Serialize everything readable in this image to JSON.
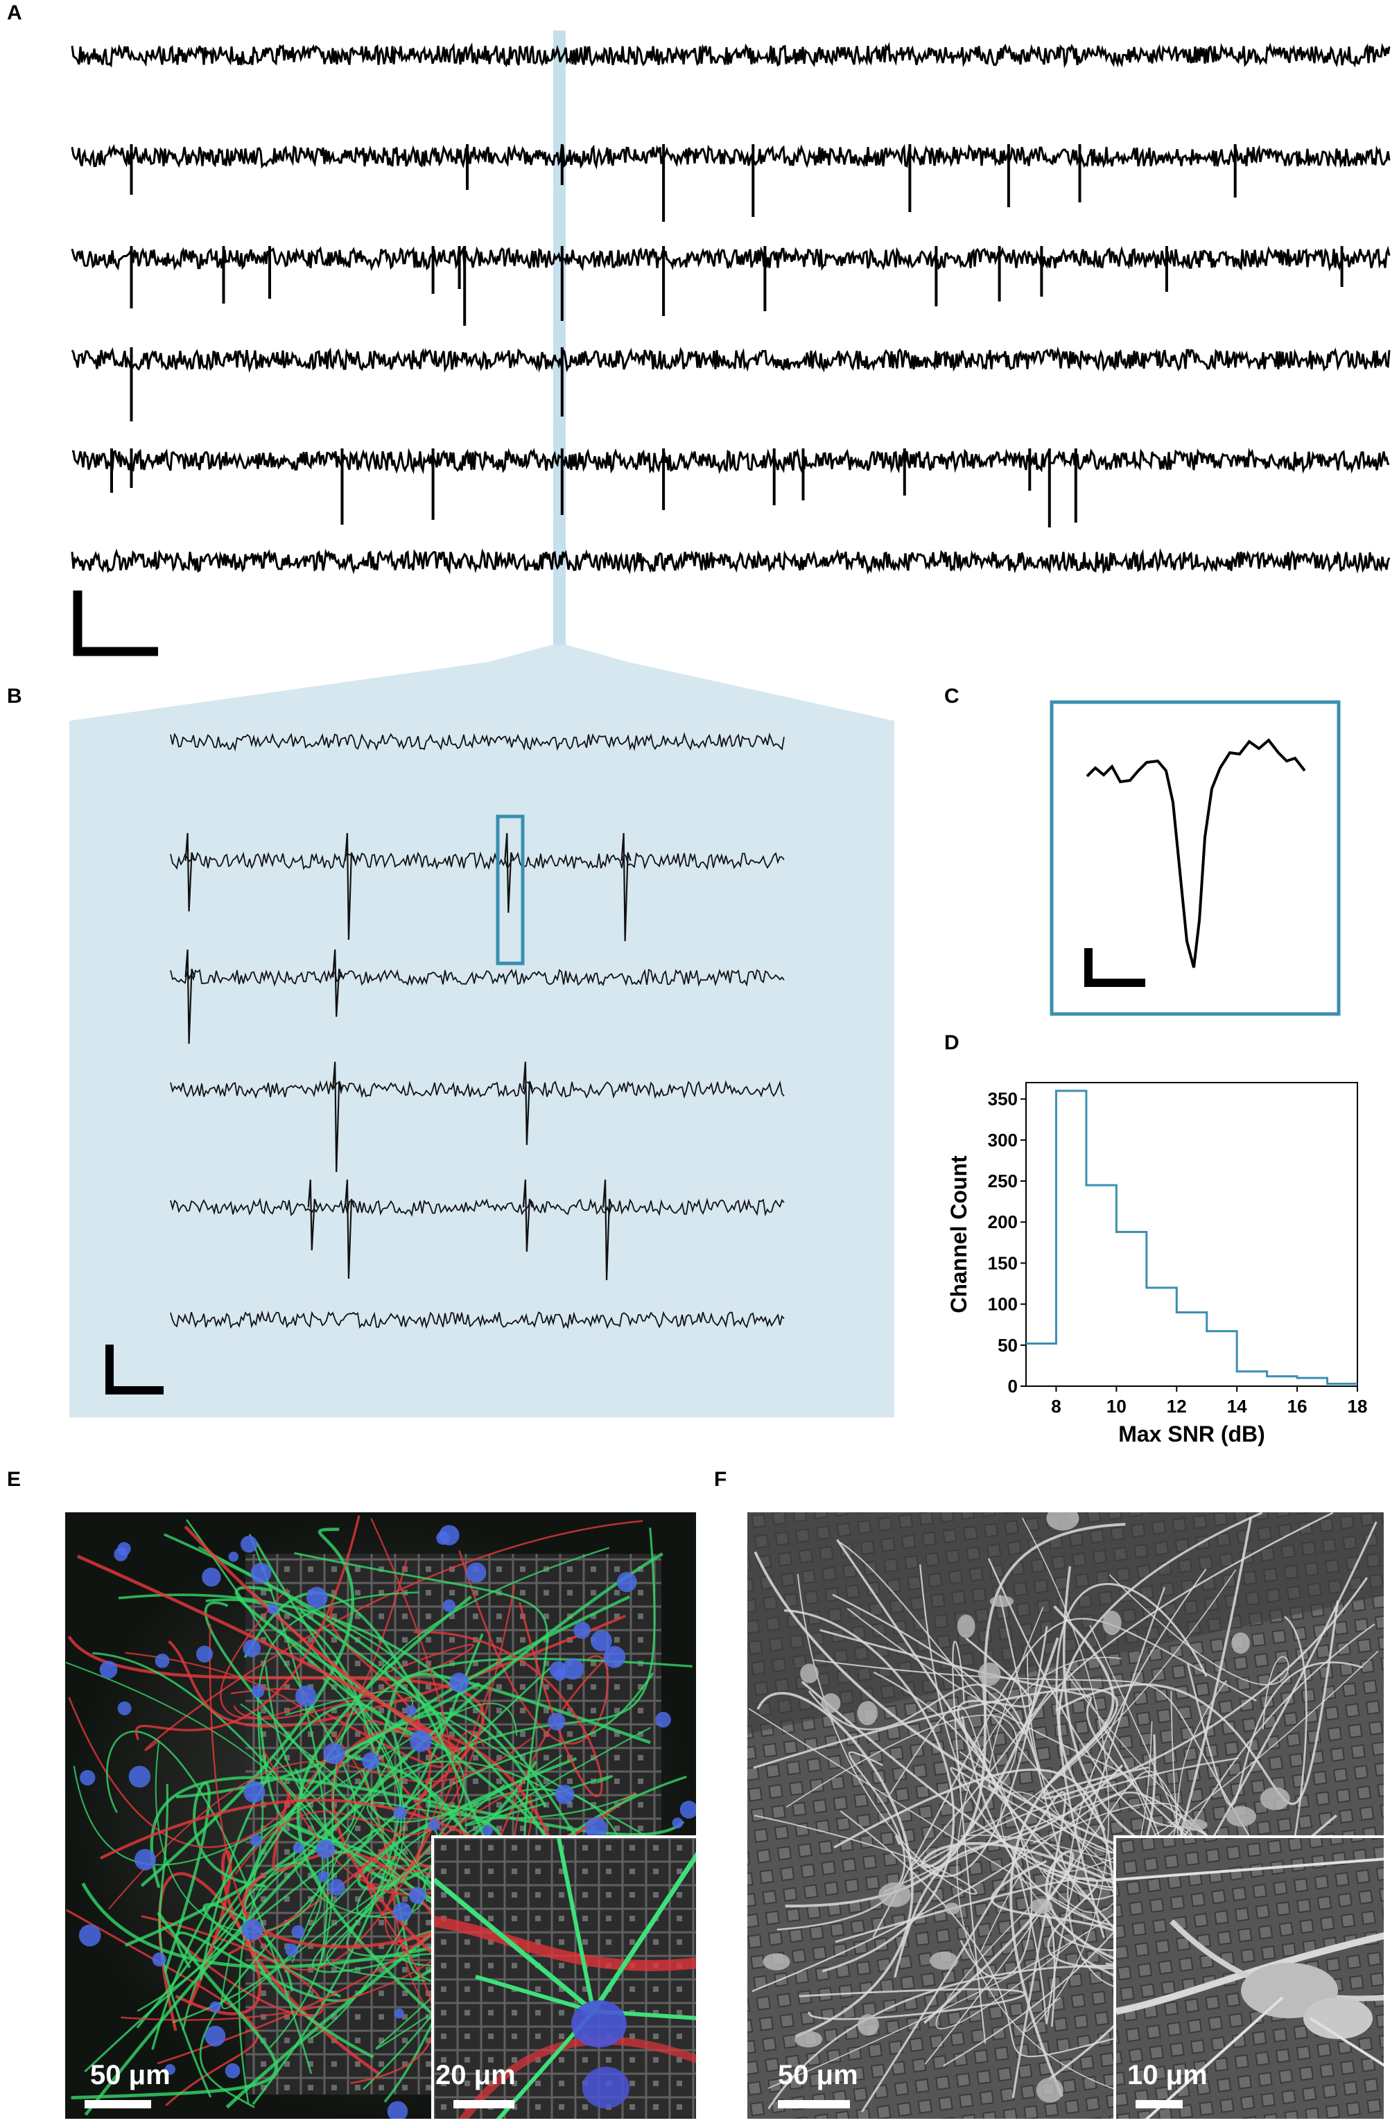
{
  "panels": {
    "a": "A",
    "b": "B",
    "c": "C",
    "d": "D",
    "e": "E",
    "f": "F"
  },
  "traces_a": {
    "count": 6,
    "spikes": [
      [],
      [
        0.045,
        0.3,
        0.372,
        0.449,
        0.517,
        0.636,
        0.711,
        0.765,
        0.883
      ],
      [
        0.045,
        0.115,
        0.15,
        0.274,
        0.294,
        0.298,
        0.372,
        0.449,
        0.526,
        0.656,
        0.704,
        0.736,
        0.831,
        0.964
      ],
      [
        0.045,
        0.372
      ],
      [
        0.03,
        0.045,
        0.205,
        0.274,
        0.372,
        0.449,
        0.533,
        0.555,
        0.632,
        0.727,
        0.742,
        0.762
      ],
      []
    ]
  },
  "traces_b": {
    "spikes": [
      [],
      [
        0.03,
        0.29,
        0.55,
        0.74
      ],
      [
        0.03,
        0.27
      ],
      [
        0.27,
        0.58
      ],
      [
        0.23,
        0.29,
        0.58,
        0.71
      ],
      []
    ]
  },
  "chart_data": {
    "type": "bar",
    "style": "step-histogram",
    "xlabel": "Max SNR (dB)",
    "ylabel": "Channel Count",
    "xlim": [
      7,
      18
    ],
    "ylim": [
      0,
      370
    ],
    "xticks": [
      8,
      10,
      12,
      14,
      16,
      18
    ],
    "yticks": [
      0,
      50,
      100,
      150,
      200,
      250,
      300,
      350
    ],
    "bin_edges": [
      7,
      8,
      9,
      10,
      11,
      12,
      13,
      14,
      15,
      16,
      17,
      18
    ],
    "values": [
      52,
      360,
      245,
      188,
      120,
      90,
      67,
      18,
      12,
      10,
      3
    ],
    "color": "#3a8fb0"
  },
  "panel_e": {
    "scale_main": "50 μm",
    "scale_inset": "20 μm"
  },
  "panel_f": {
    "scale_main": "50 μm",
    "scale_inset": "10 μm"
  },
  "colors": {
    "highlight": "#c6dfec",
    "box": "#3a8fb0"
  }
}
